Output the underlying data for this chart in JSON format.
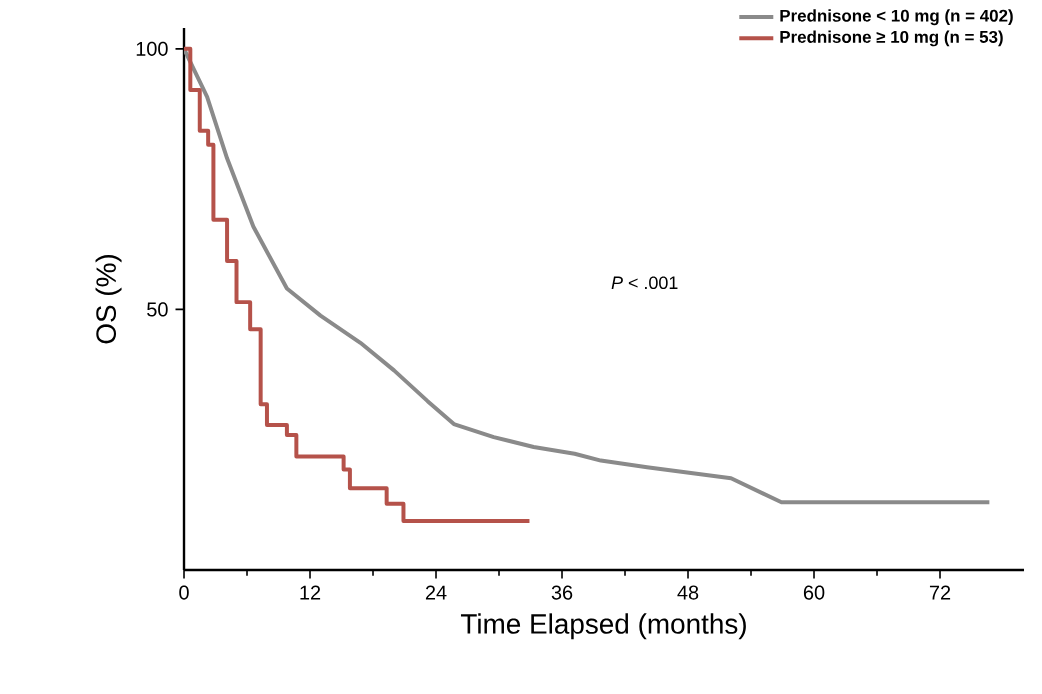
{
  "chart_data": {
    "type": "step",
    "xlabel": "Time Elapsed (months)",
    "ylabel": "OS (%)",
    "xlim": [
      0,
      80
    ],
    "ylim": [
      0,
      104
    ],
    "xticks": [
      0,
      12,
      24,
      36,
      48,
      60,
      72
    ],
    "yticks": [
      50,
      100
    ],
    "legend": "top right",
    "grid": false,
    "marker": "none",
    "line_style": "solid",
    "annotations": [
      "*P* < .001"
    ],
    "series": [
      {
        "name": "Prednisone < 10 mg (n = 402)",
        "color": "#8a8a8a",
        "type": "line",
        "x": [
          0,
          2.2,
          4.1,
          6.6,
          9.8,
          13,
          16.8,
          20,
          23.2,
          25.7,
          29.5,
          33.3,
          37.2,
          39.7,
          44.1,
          52.1,
          56.9,
          76.7
        ],
        "values": [
          100,
          90.8,
          79,
          65.9,
          54,
          48.8,
          43.6,
          38.3,
          32.4,
          28,
          25.5,
          23.6,
          22.3,
          21,
          19.7,
          17.6,
          13,
          13
        ]
      },
      {
        "name": "Prednisone ≥ 10 mg (n = 53)",
        "color": "#b5524a",
        "x": [
          0,
          0.6,
          1.5,
          2.3,
          2.8,
          4.1,
          5.0,
          6.3,
          7.3,
          7.9,
          9.8,
          10.7,
          15.2,
          15.8,
          19.3,
          20.9,
          32.9
        ],
        "values": [
          100,
          92.1,
          84.3,
          81.6,
          67.2,
          59.3,
          51.4,
          46.2,
          31.8,
          27.8,
          25.9,
          21.8,
          19.3,
          15.7,
          12.7,
          9.4,
          9.4
        ]
      }
    ]
  }
}
